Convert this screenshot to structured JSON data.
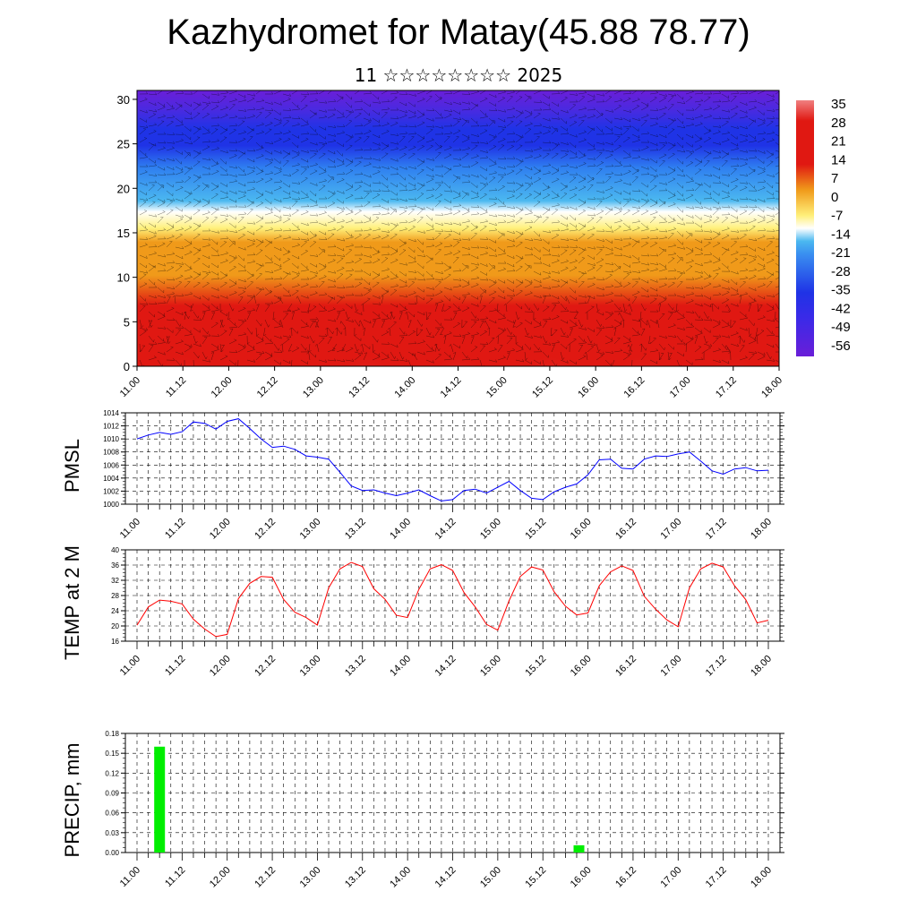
{
  "header": {
    "title": "Kazhydromet for Matay(45.88 78.77)",
    "subtitle": "11 ☆☆☆☆☆☆☆☆ 2025"
  },
  "chart_data": [
    {
      "type": "heatmap",
      "name": "cross-section",
      "y_ticks": [
        "0",
        "5",
        "10",
        "15",
        "20",
        "25",
        "30"
      ],
      "ylim": [
        0,
        31
      ],
      "x_ticks": [
        "11.00",
        "11.12",
        "12.00",
        "12.12",
        "13.00",
        "13.12",
        "14.00",
        "14.12",
        "15.00",
        "15.12",
        "16.00",
        "16.12",
        "17.00",
        "17.12",
        "18.00"
      ],
      "colorbar_labels": [
        "35",
        "28",
        "21",
        "14",
        "7",
        "0",
        "-7",
        "-14",
        "-21",
        "-28",
        "-35",
        "-42",
        "-49",
        "-56"
      ],
      "colors": {
        "top": "#6a1ed8",
        "mid_blue": "#1f33e6",
        "light_blue": "#4bb8f0",
        "yellow": "#fff07a",
        "orange": "#f09a1a",
        "red": "#e01812",
        "pink": "#f08080"
      }
    },
    {
      "type": "line",
      "ylabel": "PMSL",
      "ylim": [
        1000,
        1014
      ],
      "y_ticks": [
        "1000",
        "1002",
        "1004",
        "1006",
        "1008",
        "1010",
        "1012",
        "1014"
      ],
      "x_ticks": [
        "11.00",
        "11.12",
        "12.00",
        "12.12",
        "13.00",
        "13.12",
        "14.00",
        "14.12",
        "15.00",
        "15.12",
        "16.00",
        "16.12",
        "17.00",
        "17.12",
        "18.00"
      ],
      "color": "#0000ff",
      "values": [
        1010.0,
        1010.6,
        1011.0,
        1010.7,
        1011.1,
        1012.6,
        1012.4,
        1011.5,
        1012.7,
        1013.1,
        1011.6,
        1010.0,
        1008.7,
        1008.9,
        1008.4,
        1007.4,
        1007.2,
        1006.9,
        1004.9,
        1002.8,
        1002.1,
        1002.2,
        1001.7,
        1001.3,
        1001.7,
        1002.2,
        1001.3,
        1000.5,
        1000.7,
        1002.1,
        1002.3,
        1001.7,
        1002.6,
        1003.5,
        1002.1,
        1000.9,
        1000.7,
        1001.9,
        1002.6,
        1003.1,
        1004.5,
        1006.8,
        1006.9,
        1005.5,
        1005.4,
        1006.9,
        1007.4,
        1007.3,
        1007.7,
        1008.0,
        1006.6,
        1005.1,
        1004.6,
        1005.4,
        1005.6,
        1005.1,
        1005.2
      ]
    },
    {
      "type": "line",
      "ylabel": "TEMP at 2 M",
      "ylim": [
        16,
        40
      ],
      "y_ticks": [
        "16",
        "20",
        "24",
        "28",
        "32",
        "36",
        "40"
      ],
      "x_ticks": [
        "11.00",
        "11.12",
        "12.00",
        "12.12",
        "13.00",
        "13.12",
        "14.00",
        "14.12",
        "15.00",
        "15.12",
        "16.00",
        "16.12",
        "17.00",
        "17.12",
        "18.00"
      ],
      "color": "#ff0000",
      "values": [
        20.2,
        25.0,
        26.8,
        26.5,
        25.8,
        21.8,
        19.2,
        17.2,
        17.8,
        27.2,
        31.2,
        33.0,
        32.8,
        27.0,
        23.6,
        22.2,
        20.2,
        30.0,
        35.0,
        36.7,
        35.6,
        29.8,
        27.0,
        22.8,
        22.2,
        29.6,
        35.0,
        36.1,
        34.6,
        28.8,
        25.0,
        20.4,
        18.9,
        26.6,
        33.0,
        35.5,
        34.7,
        29.0,
        25.2,
        22.9,
        23.4,
        30.6,
        34.2,
        35.8,
        34.6,
        27.8,
        24.4,
        21.6,
        19.8,
        30.0,
        35.0,
        36.5,
        35.5,
        30.6,
        26.9,
        20.8,
        21.5
      ]
    },
    {
      "type": "bar",
      "ylabel": "PRECIP, mm",
      "ylim": [
        0,
        0.18
      ],
      "y_ticks": [
        "0.00",
        "0.03",
        "0.06",
        "0.09",
        "0.12",
        "0.15",
        "0.18"
      ],
      "x_ticks": [
        "11.00",
        "11.12",
        "12.00",
        "12.12",
        "13.00",
        "13.12",
        "14.00",
        "14.12",
        "15.00",
        "15.12",
        "16.00",
        "16.12",
        "17.00",
        "17.12",
        "18.00"
      ],
      "color": "#00ee00",
      "bars": [
        {
          "x": 0.25,
          "value": 0.16
        },
        {
          "x": 4.9,
          "value": 0.011
        }
      ]
    }
  ]
}
